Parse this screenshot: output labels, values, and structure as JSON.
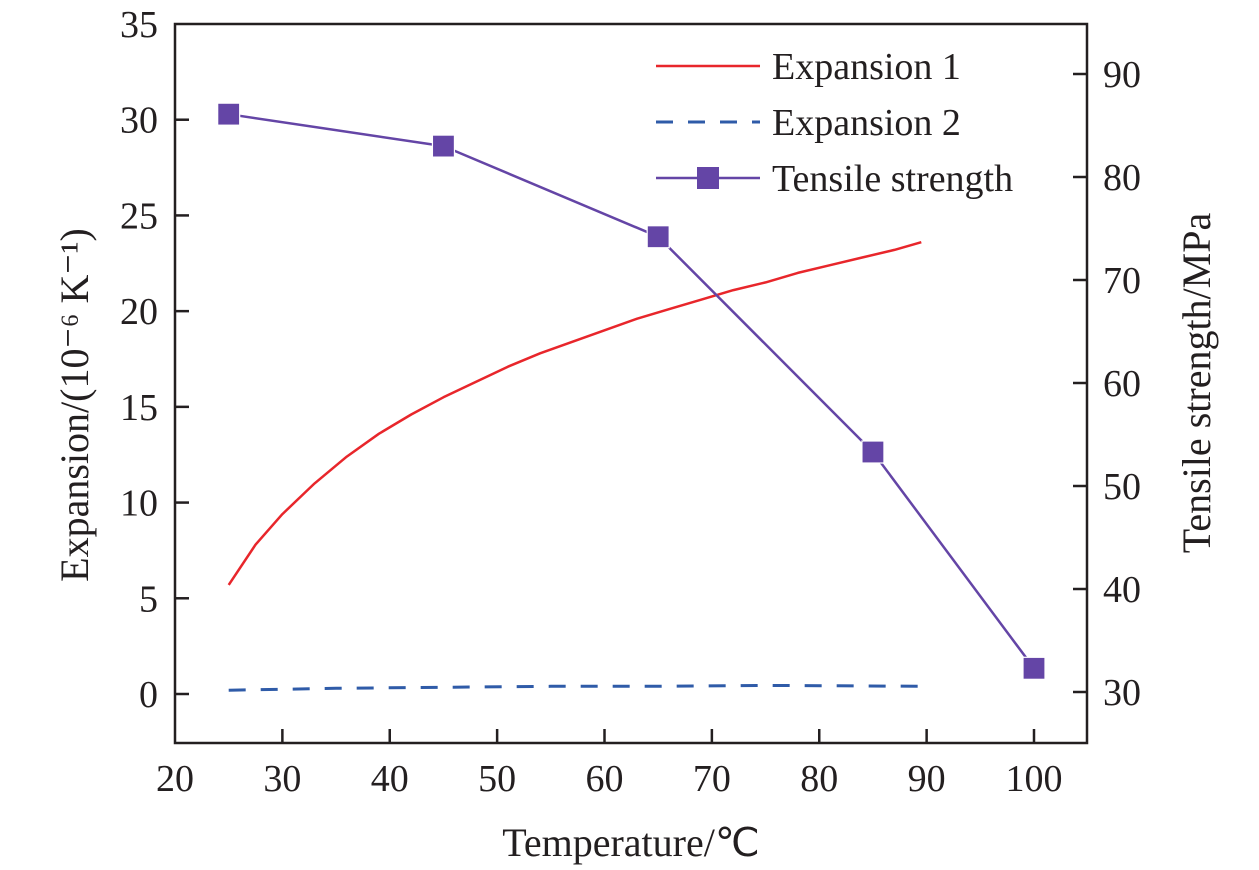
{
  "chart_data": {
    "type": "line",
    "title": "",
    "xlabel": "Temperature/℃",
    "ylabel": "Expansion/(10⁻⁶ K⁻¹)",
    "ylabel_right": "Tensile strength/MPa",
    "xlim": [
      20,
      105
    ],
    "ylim": [
      -2.5,
      35
    ],
    "ylim_right": [
      25,
      95
    ],
    "x_ticks": [
      20,
      30,
      40,
      50,
      60,
      70,
      80,
      90,
      100
    ],
    "y_ticks": [
      0,
      5,
      10,
      15,
      20,
      25,
      30,
      35
    ],
    "y_ticks_right": [
      30,
      40,
      50,
      60,
      70,
      80,
      90
    ],
    "grid": false,
    "legend_position": "top-right",
    "colors": {
      "expansion1": "#e8262b",
      "expansion2": "#2f5ba8",
      "tensile": "#6445a6",
      "axis": "#231f20"
    },
    "series": [
      {
        "name": "Expansion 1",
        "axis": "left",
        "style": "solid",
        "x": [
          25,
          27.5,
          30,
          33,
          36,
          39,
          42,
          45,
          48,
          51,
          54,
          57,
          60,
          63,
          66,
          69,
          72,
          75,
          78,
          81,
          84,
          87,
          89.5
        ],
        "values": [
          5.7,
          7.8,
          9.4,
          11.0,
          12.4,
          13.6,
          14.6,
          15.5,
          16.3,
          17.1,
          17.8,
          18.4,
          19.0,
          19.6,
          20.1,
          20.6,
          21.1,
          21.5,
          22.0,
          22.4,
          22.8,
          23.2,
          23.6
        ]
      },
      {
        "name": "Expansion 2",
        "axis": "left",
        "style": "dashed",
        "x": [
          25,
          35,
          45,
          55,
          65,
          75,
          89.5
        ],
        "values": [
          0.2,
          0.3,
          0.35,
          0.4,
          0.4,
          0.45,
          0.4
        ]
      },
      {
        "name": "Tensile strength",
        "axis": "right",
        "style": "solid-square-markers",
        "x": [
          25,
          45,
          65,
          85,
          100
        ],
        "values": [
          86.1,
          83.0,
          74.2,
          53.3,
          32.3
        ]
      }
    ]
  }
}
